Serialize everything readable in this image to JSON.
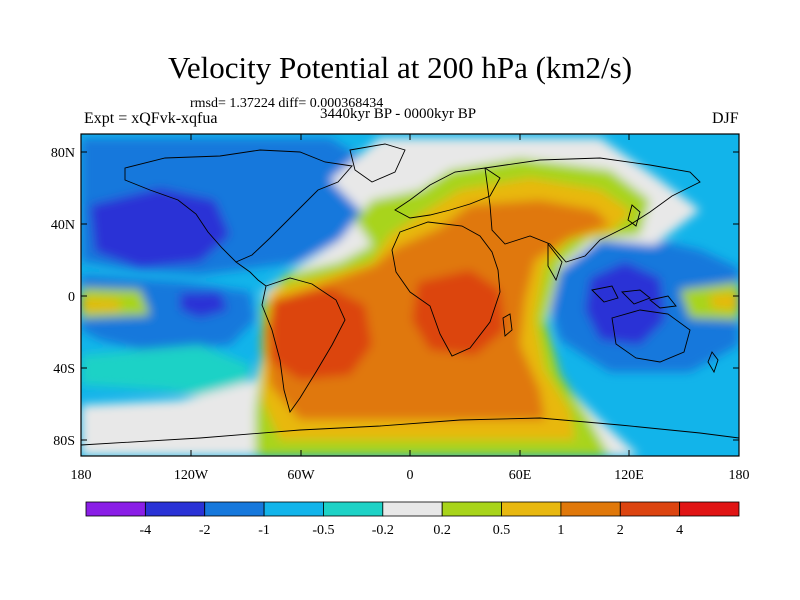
{
  "header": {
    "title": "Velocity Potential at 200 hPa (km2/s)",
    "stats": "rmsd= 1.37224 diff= 0.000368434",
    "experiment": "Expt = xQFvk-xqfua",
    "period": "3440kyr BP - 0000kyr BP",
    "season": "DJF"
  },
  "map": {
    "lat_labels": [
      "80N",
      "40N",
      "0",
      "40S",
      "80S"
    ],
    "lon_labels": [
      "180",
      "120W",
      "60W",
      "0",
      "60E",
      "120E",
      "180"
    ]
  },
  "colorbar": {
    "labels": [
      "-4",
      "-2",
      "-1",
      "-0.5",
      "-0.2",
      "0.2",
      "0.5",
      "1",
      "2",
      "4"
    ],
    "colors": [
      "#8a1ee6",
      "#2a32d6",
      "#1678dc",
      "#12b4ea",
      "#1ed2c6",
      "#e8e8e8",
      "#a8d41a",
      "#e8b810",
      "#e0780a",
      "#dc4410",
      "#e01414"
    ]
  }
}
